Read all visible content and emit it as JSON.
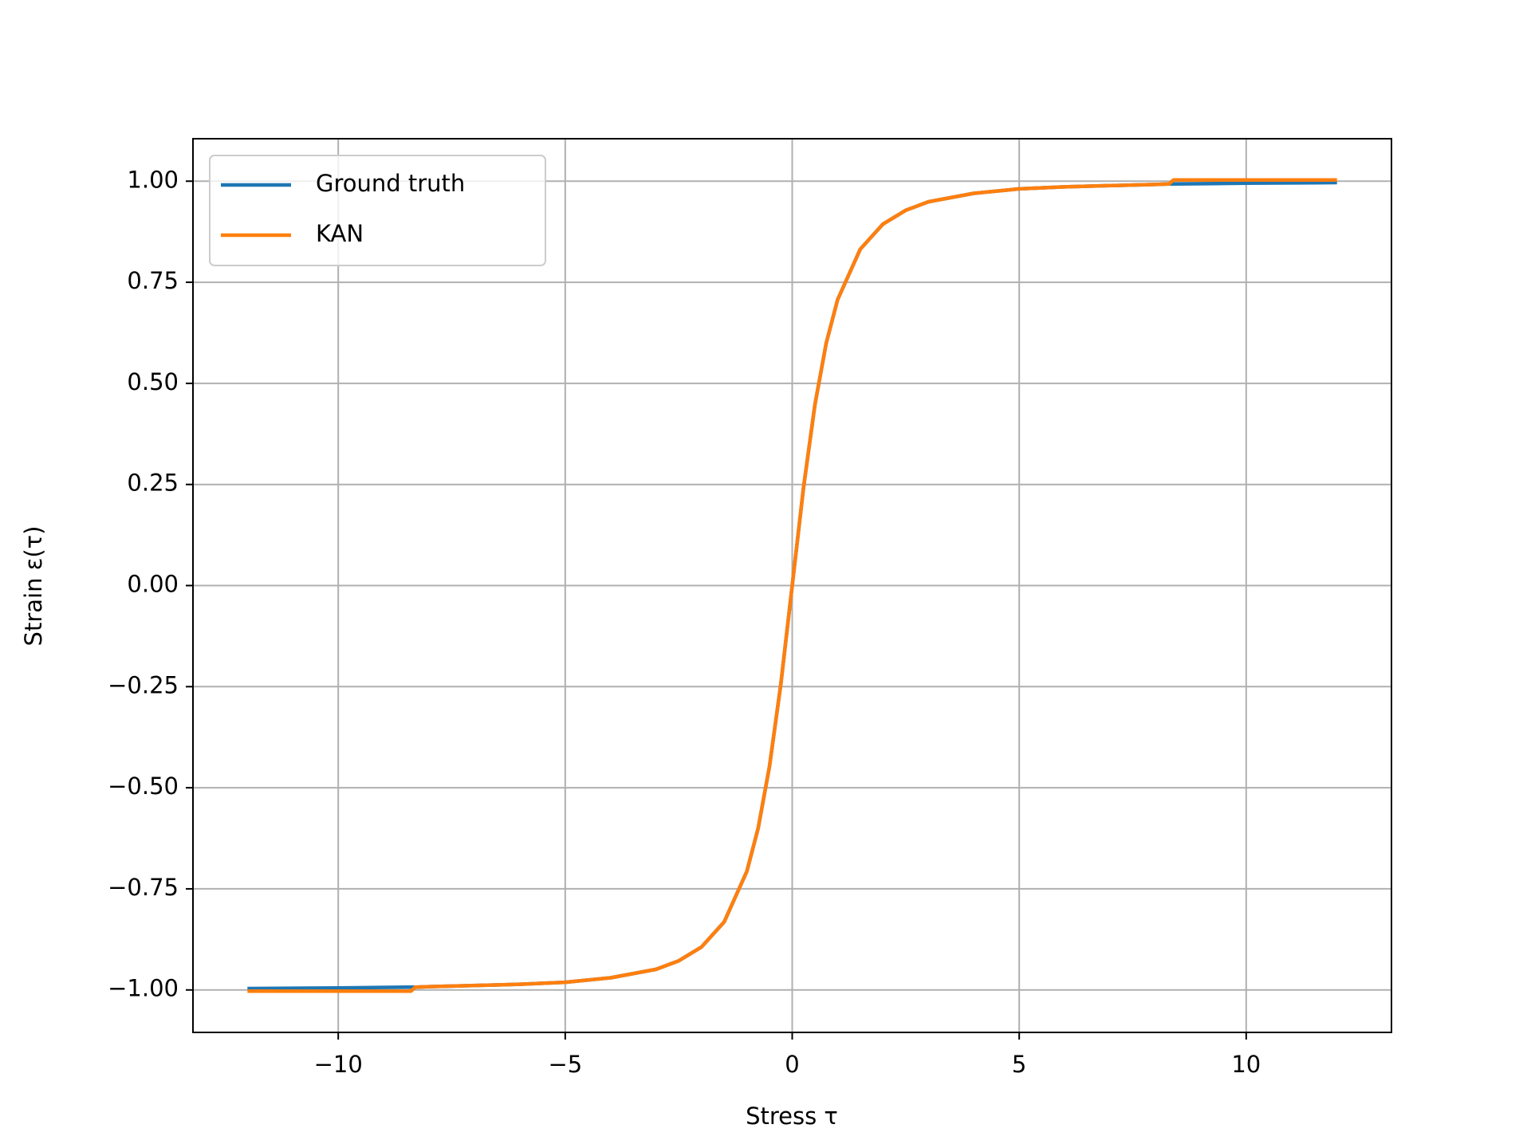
{
  "chart_data": {
    "type": "line",
    "x_label": "Stress τ",
    "y_label": "Strain ε(τ)",
    "x": [
      -12,
      -10,
      -8.4,
      -8.3,
      -8,
      -6,
      -5,
      -4,
      -3,
      -2.5,
      -2,
      -1.5,
      -1,
      -0.75,
      -0.5,
      -0.25,
      0,
      0.25,
      0.5,
      0.75,
      1,
      1.5,
      2,
      2.5,
      3,
      4,
      5,
      6,
      8,
      8.3,
      8.4,
      10,
      12
    ],
    "series": [
      {
        "name": "Ground truth",
        "color": "#1f77b4",
        "values": [
          -0.9965,
          -0.995,
          -0.993,
          -0.993,
          -0.992,
          -0.986,
          -0.981,
          -0.97,
          -0.949,
          -0.928,
          -0.894,
          -0.832,
          -0.707,
          -0.6,
          -0.447,
          -0.243,
          0,
          0.243,
          0.447,
          0.6,
          0.707,
          0.832,
          0.894,
          0.928,
          0.949,
          0.97,
          0.981,
          0.986,
          0.992,
          0.993,
          0.993,
          0.995,
          0.9965
        ]
      },
      {
        "name": "KAN",
        "color": "#ff7f0e",
        "values": [
          -1.003,
          -1.003,
          -1.003,
          -0.993,
          -0.992,
          -0.986,
          -0.981,
          -0.97,
          -0.949,
          -0.928,
          -0.894,
          -0.832,
          -0.707,
          -0.6,
          -0.447,
          -0.243,
          0,
          0.243,
          0.447,
          0.6,
          0.707,
          0.832,
          0.894,
          0.928,
          0.949,
          0.97,
          0.981,
          0.986,
          0.992,
          0.993,
          1.003,
          1.003,
          1.003
        ]
      }
    ],
    "xlim": [
      -13.2,
      13.2
    ],
    "ylim": [
      -1.105,
      1.105
    ],
    "xticks": [
      {
        "value": -10,
        "label": "−10"
      },
      {
        "value": -5,
        "label": "−5"
      },
      0,
      5,
      10
    ],
    "yticks": [
      {
        "value": -1,
        "label": "−1.00"
      },
      {
        "value": -0.75,
        "label": "−0.75"
      },
      {
        "value": -0.5,
        "label": "−0.50"
      },
      {
        "value": -0.25,
        "label": "−0.25"
      },
      {
        "value": 0,
        "label": "0.00"
      },
      {
        "value": 0.25,
        "label": "0.25"
      },
      {
        "value": 0.5,
        "label": "0.50"
      },
      {
        "value": 0.75,
        "label": "0.75"
      },
      {
        "value": 1,
        "label": "1.00"
      }
    ],
    "grid": true,
    "legend": "upper left"
  }
}
